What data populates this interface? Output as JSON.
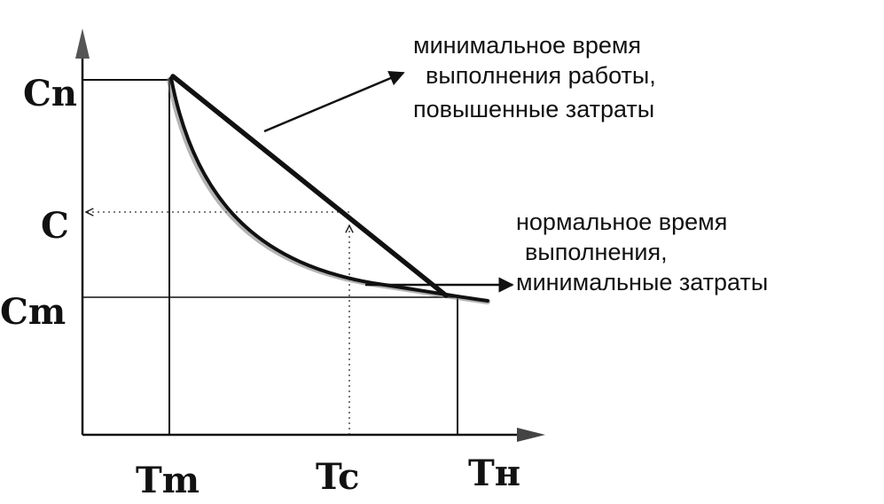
{
  "y_labels": {
    "cn": "Cn",
    "c": "C",
    "cm": "Cm"
  },
  "x_labels": {
    "tm": "Tm",
    "tc": "Tc",
    "tn": "Tн"
  },
  "annotations": {
    "min_time": {
      "line1": "минимальное время",
      "line2": "выполнения работы,",
      "line3": "повышенные затраты"
    },
    "normal_time": {
      "line1": "нормальное время",
      "line2": "выполнения,",
      "line3": "минимальные затраты"
    }
  },
  "colors": {
    "ink": "#111111",
    "curve_shadow": "#777777"
  }
}
